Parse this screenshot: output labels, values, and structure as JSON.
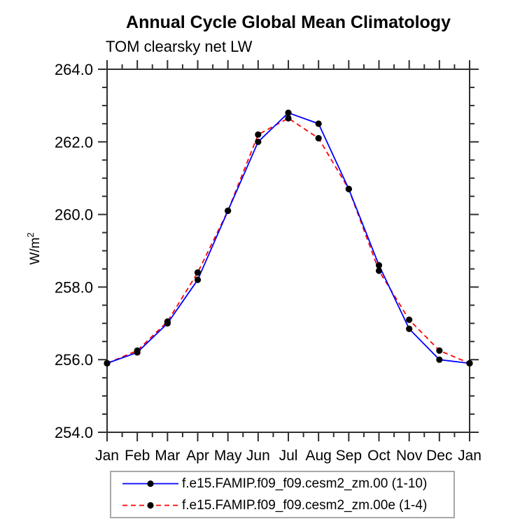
{
  "chart_data": {
    "type": "line",
    "title": "Annual Cycle Global Mean Climatology",
    "subtitle": "TOM clearsky net LW",
    "ylabel_base": "W/m",
    "ylabel_sup": "2",
    "categories": [
      "Jan",
      "Feb",
      "Mar",
      "Apr",
      "May",
      "Jun",
      "Jul",
      "Aug",
      "Sep",
      "Oct",
      "Nov",
      "Dec",
      "Jan"
    ],
    "ylim": [
      254.0,
      264.0
    ],
    "ytick_values": [
      254.0,
      256.0,
      258.0,
      260.0,
      262.0,
      264.0
    ],
    "ytick_labels": [
      "254.0",
      "256.0",
      "258.0",
      "260.0",
      "262.0",
      "264.0"
    ],
    "y_minor_step": 0.5,
    "x_minor_step": 0.5,
    "grid": false,
    "legend_position": "bottom",
    "axis_color": "#2f2f2f",
    "marker_color": "#000000",
    "series": [
      {
        "label": "f.e15.FAMIP.f09_f09.cesm2_zm.00 (1-10)",
        "color": "#0000ff",
        "line_style": "solid",
        "marker": "black-dot",
        "values": [
          255.9,
          256.2,
          257.0,
          258.2,
          260.1,
          262.0,
          262.8,
          262.5,
          260.7,
          258.6,
          256.85,
          256.0,
          255.9
        ]
      },
      {
        "label": "f.e15.FAMIP.f09_f09.cesm2_zm.00e (1-4)",
        "color": "#ff0000",
        "line_style": "dashed",
        "marker": "black-dot",
        "values": [
          255.9,
          256.25,
          257.05,
          258.4,
          260.1,
          262.2,
          262.65,
          262.1,
          260.7,
          258.45,
          257.1,
          256.25,
          255.9
        ]
      }
    ]
  }
}
